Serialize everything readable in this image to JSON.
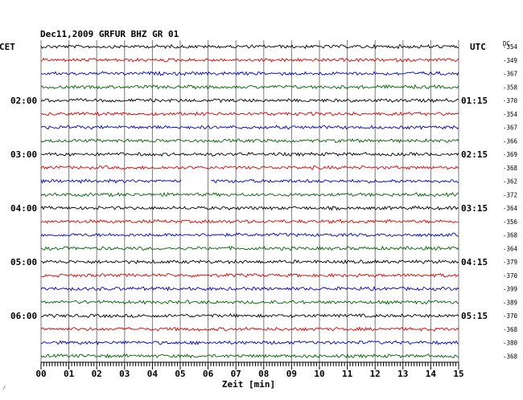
{
  "chart_data": {
    "type": "line",
    "title": "Dec11,2009   GRFUR BHZ GR 01",
    "left_label": "CET",
    "right_label": "UTC",
    "dc_label": "DC",
    "xlabel": "Zeit [min]",
    "xlim": [
      0,
      15
    ],
    "x_ticks": [
      "00",
      "01",
      "02",
      "03",
      "04",
      "05",
      "06",
      "07",
      "08",
      "09",
      "10",
      "11",
      "12",
      "13",
      "14",
      "15"
    ],
    "left_hour_labels": [
      {
        "trace": 4,
        "text": "02:00"
      },
      {
        "trace": 8,
        "text": "03:00"
      },
      {
        "trace": 12,
        "text": "04:00"
      },
      {
        "trace": 16,
        "text": "05:00"
      },
      {
        "trace": 20,
        "text": "06:00"
      }
    ],
    "right_hour_labels": [
      {
        "trace": 4,
        "text": "01:15"
      },
      {
        "trace": 8,
        "text": "02:15"
      },
      {
        "trace": 12,
        "text": "03:15"
      },
      {
        "trace": 16,
        "text": "04:15"
      },
      {
        "trace": 20,
        "text": "05:15"
      }
    ],
    "trace_colors": [
      "#000000",
      "#e00000",
      "#0000c8",
      "#006400"
    ],
    "dc_offsets": [
      "-354",
      "-349",
      "-367",
      "-358",
      "-370",
      "-354",
      "-367",
      "-366",
      "-369",
      "-368",
      "-362",
      "-372",
      "-364",
      "-356",
      "-368",
      "-364",
      "-379",
      "-370",
      "-399",
      "-389",
      "-370",
      "-368",
      "-380",
      "-368"
    ],
    "gaps": [
      {
        "trace": 10,
        "from_min": 5.05,
        "to_min": 6.1
      }
    ],
    "grid": true,
    "corner_mark": "⁄"
  }
}
